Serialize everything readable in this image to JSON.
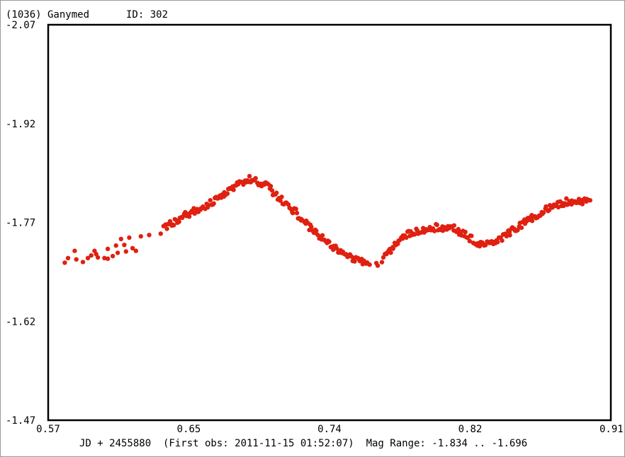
{
  "header": {
    "object": "(1036) Ganymed",
    "id_label": "ID: 302"
  },
  "footer": {
    "caption": "JD + 2455880  (First obs: 2011-11-15 01:52:07)  Mag Range: -1.834 .. -1.696"
  },
  "chart_data": {
    "type": "scatter",
    "x_offset_label": "JD + 2455880",
    "xlim": [
      0.57,
      0.91
    ],
    "ylim": [
      -2.07,
      -1.47
    ],
    "y_inverted": true,
    "xticks": [
      "0.57",
      "0.65",
      "0.74",
      "0.82",
      "0.91"
    ],
    "xtick_values": [
      0.57,
      0.655,
      0.74,
      0.825,
      0.91
    ],
    "yticks": [
      "-2.07",
      "-1.92",
      "-1.77",
      "-1.62",
      "-1.47"
    ],
    "ytick_values": [
      -2.07,
      -1.92,
      -1.77,
      -1.62,
      -1.47
    ],
    "marker_color": "#e02010",
    "curve_knots": [
      [
        0.58,
        -1.707
      ],
      [
        0.62,
        -1.73
      ],
      [
        0.63,
        -1.747
      ],
      [
        0.65,
        -1.777
      ],
      [
        0.67,
        -1.803
      ],
      [
        0.69,
        -1.836
      ],
      [
        0.7,
        -1.83
      ],
      [
        0.715,
        -1.797
      ],
      [
        0.73,
        -1.758
      ],
      [
        0.745,
        -1.727
      ],
      [
        0.755,
        -1.713
      ],
      [
        0.77,
        -1.707
      ],
      [
        0.786,
        -1.752
      ],
      [
        0.806,
        -1.763
      ],
      [
        0.815,
        -1.762
      ],
      [
        0.83,
        -1.738
      ],
      [
        0.843,
        -1.745
      ],
      [
        0.855,
        -1.765
      ],
      [
        0.87,
        -1.79
      ],
      [
        0.885,
        -1.803
      ],
      [
        0.898,
        -1.8
      ]
    ],
    "sparse_points": [
      [
        0.58,
        -1.709
      ],
      [
        0.582,
        -1.716
      ],
      [
        0.586,
        -1.727
      ],
      [
        0.587,
        -1.714
      ],
      [
        0.591,
        -1.71
      ],
      [
        0.594,
        -1.716
      ],
      [
        0.596,
        -1.72
      ],
      [
        0.598,
        -1.727
      ],
      [
        0.599,
        -1.722
      ],
      [
        0.6,
        -1.717
      ],
      [
        0.604,
        -1.716
      ],
      [
        0.606,
        -1.715
      ],
      [
        0.606,
        -1.73
      ],
      [
        0.609,
        -1.719
      ],
      [
        0.611,
        -1.735
      ],
      [
        0.612,
        -1.724
      ],
      [
        0.614,
        -1.745
      ],
      [
        0.616,
        -1.736
      ],
      [
        0.617,
        -1.726
      ],
      [
        0.619,
        -1.747
      ],
      [
        0.621,
        -1.731
      ],
      [
        0.623,
        -1.727
      ],
      [
        0.626,
        -1.749
      ],
      [
        0.631,
        -1.751
      ],
      [
        0.638,
        -1.753
      ]
    ]
  }
}
